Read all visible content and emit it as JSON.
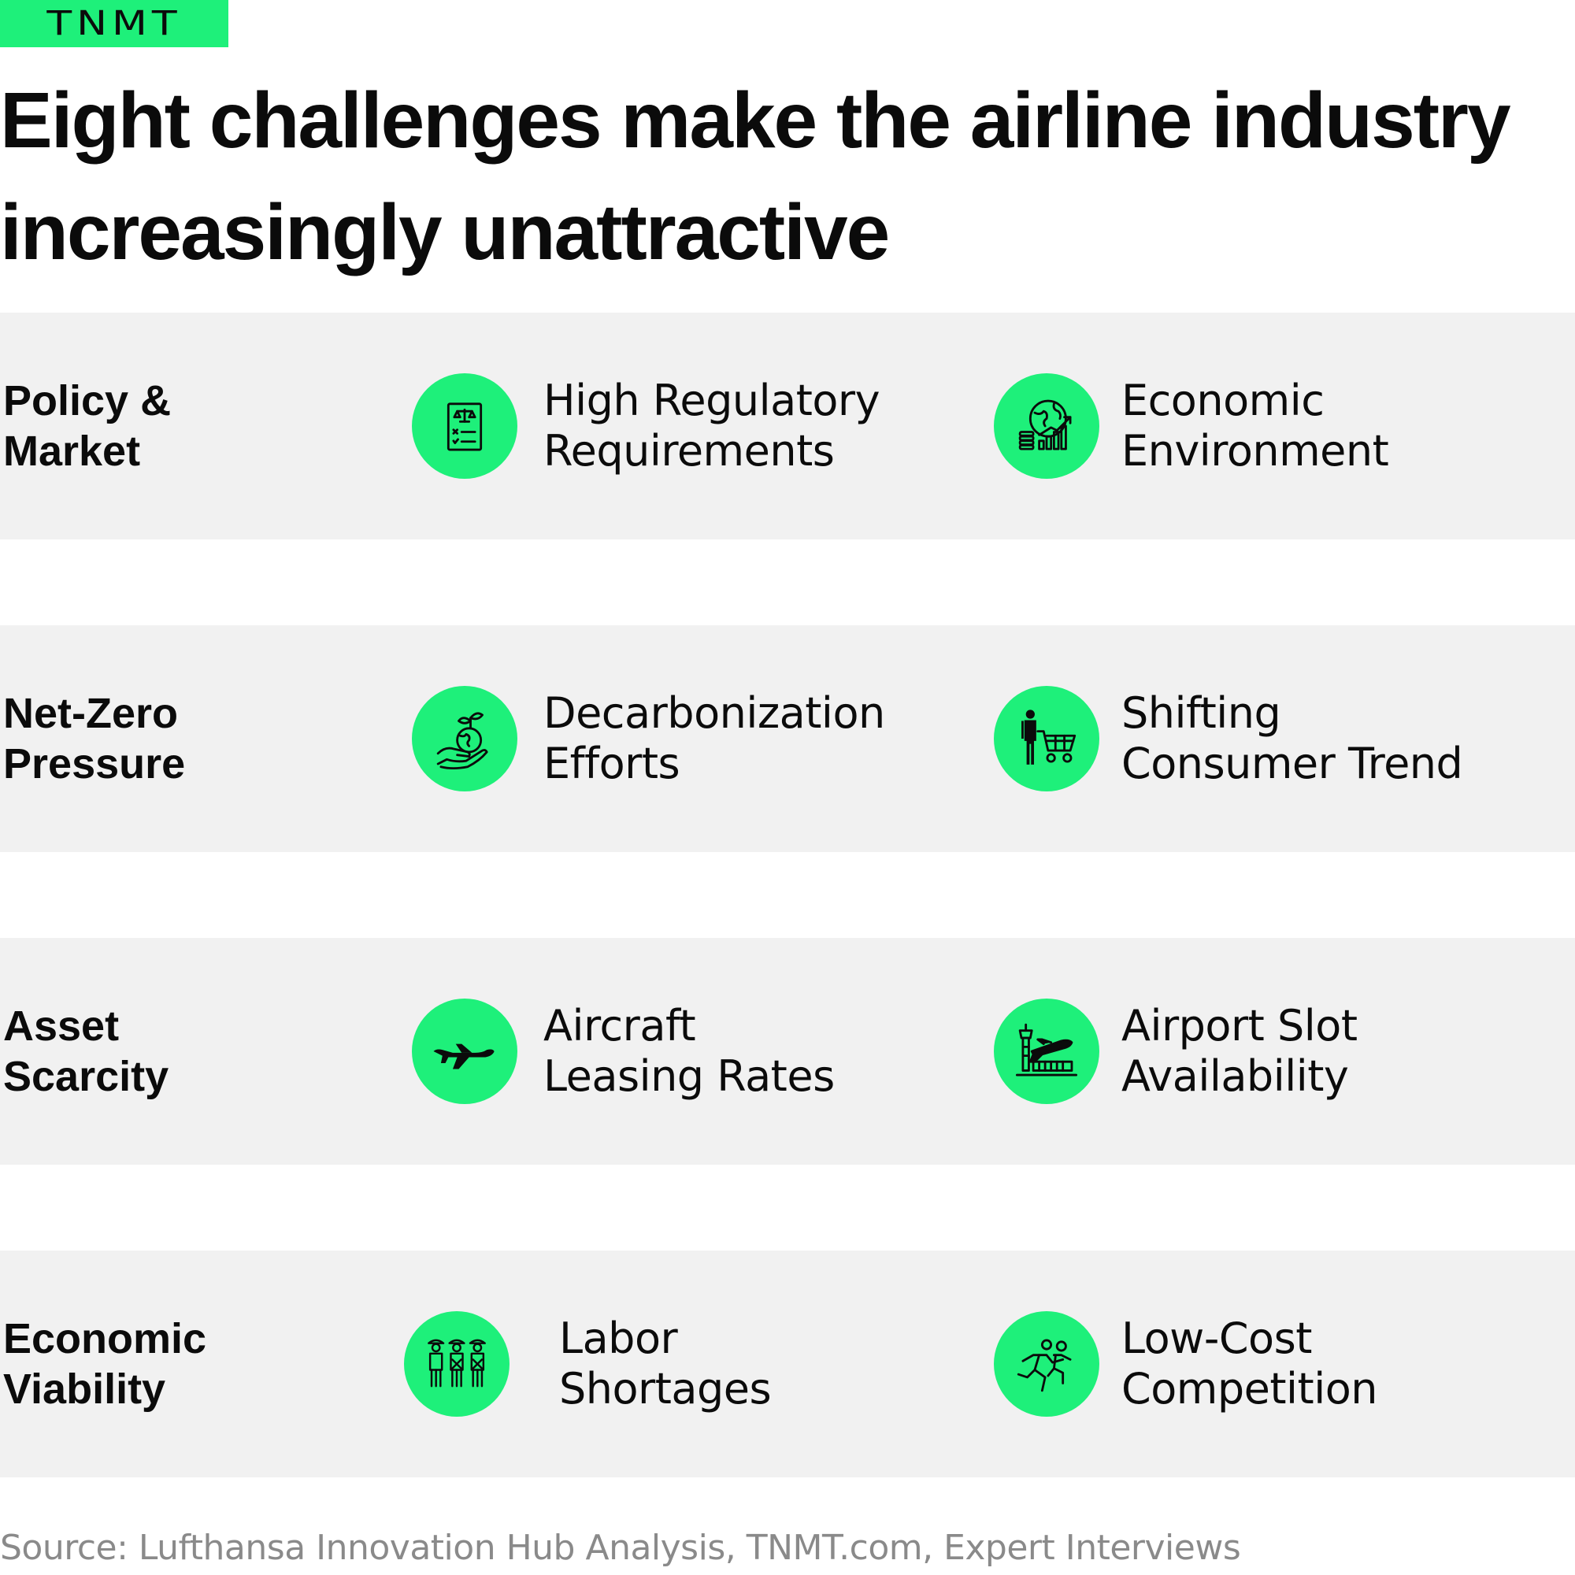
{
  "brand": {
    "logo_text": "TNMT",
    "accent_color": "#1ef07a"
  },
  "title": "Eight challenges make the airline industry increasingly unattractive",
  "rows": [
    {
      "category": "Policy &\nMarket",
      "items": [
        {
          "label": "High Regulatory\nRequirements",
          "icon": "regulation-document-icon"
        },
        {
          "label": "Economic\nEnvironment",
          "icon": "globe-finance-icon"
        }
      ]
    },
    {
      "category": "Net-Zero\nPressure",
      "items": [
        {
          "label": "Decarbonization\nEfforts",
          "icon": "hand-globe-plant-icon"
        },
        {
          "label": "Shifting\nConsumer Trend",
          "icon": "shopper-cart-icon"
        }
      ]
    },
    {
      "category": "Asset\nScarcity",
      "items": [
        {
          "label": "Aircraft\nLeasing Rates",
          "icon": "airplane-icon"
        },
        {
          "label": "Airport Slot\nAvailability",
          "icon": "airport-tower-icon"
        }
      ]
    },
    {
      "category": "Economic\nViability",
      "items": [
        {
          "label": "Labor\nShortages",
          "icon": "workers-icon"
        },
        {
          "label": "Low-Cost\nCompetition",
          "icon": "runners-icon"
        }
      ]
    }
  ],
  "source": "Source: Lufthansa Innovation Hub Analysis, TNMT.com, Expert Interviews"
}
